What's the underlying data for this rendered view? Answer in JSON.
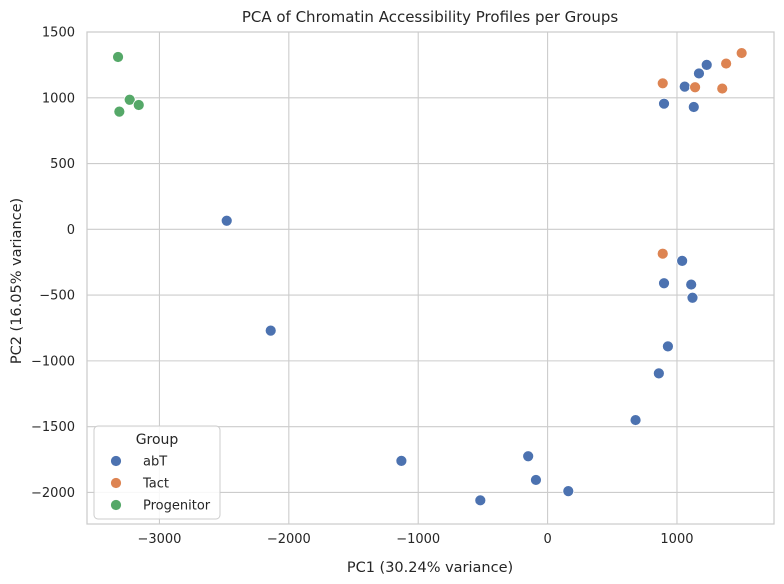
{
  "chart_data": {
    "type": "scatter",
    "title": "PCA of Chromatin Accessibility Profiles per Groups",
    "xlabel": "PC1 (30.24% variance)",
    "ylabel": "PC2 (16.05% variance)",
    "xlim": [
      -3560,
      1750
    ],
    "ylim": [
      -2240,
      1500
    ],
    "xticks": [
      -3000,
      -2000,
      -1000,
      0,
      1000
    ],
    "xtick_labels": [
      "−3000",
      "−2000",
      "−1000",
      "0",
      "1000"
    ],
    "yticks": [
      -2000,
      -1500,
      -1000,
      -500,
      0,
      500,
      1000,
      1500
    ],
    "ytick_labels": [
      "−2000",
      "−1500",
      "−1000",
      "−500",
      "0",
      "500",
      "1000",
      "1500"
    ],
    "grid": true,
    "legend": {
      "title": "Group",
      "location": "lower-left"
    },
    "series": [
      {
        "name": "abT",
        "color": "#4c72b0",
        "points": [
          [
            -2480,
            65
          ],
          [
            -2140,
            -770
          ],
          [
            -1130,
            -1760
          ],
          [
            -520,
            -2060
          ],
          [
            -150,
            -1725
          ],
          [
            -90,
            -1905
          ],
          [
            160,
            -1990
          ],
          [
            680,
            -1450
          ],
          [
            860,
            -1095
          ],
          [
            930,
            -890
          ],
          [
            900,
            -410
          ],
          [
            1040,
            -240
          ],
          [
            1110,
            -420
          ],
          [
            1120,
            -520
          ],
          [
            900,
            955
          ],
          [
            1130,
            930
          ],
          [
            1060,
            1085
          ],
          [
            1170,
            1185
          ],
          [
            1230,
            1250
          ]
        ]
      },
      {
        "name": "Tact",
        "color": "#dd8452",
        "points": [
          [
            890,
            -185
          ],
          [
            890,
            1110
          ],
          [
            1140,
            1080
          ],
          [
            1350,
            1070
          ],
          [
            1380,
            1260
          ],
          [
            1500,
            1340
          ]
        ]
      },
      {
        "name": "Progenitor",
        "color": "#55a868",
        "points": [
          [
            -3320,
            1310
          ],
          [
            -3230,
            985
          ],
          [
            -3160,
            945
          ],
          [
            -3310,
            895
          ]
        ]
      }
    ]
  }
}
